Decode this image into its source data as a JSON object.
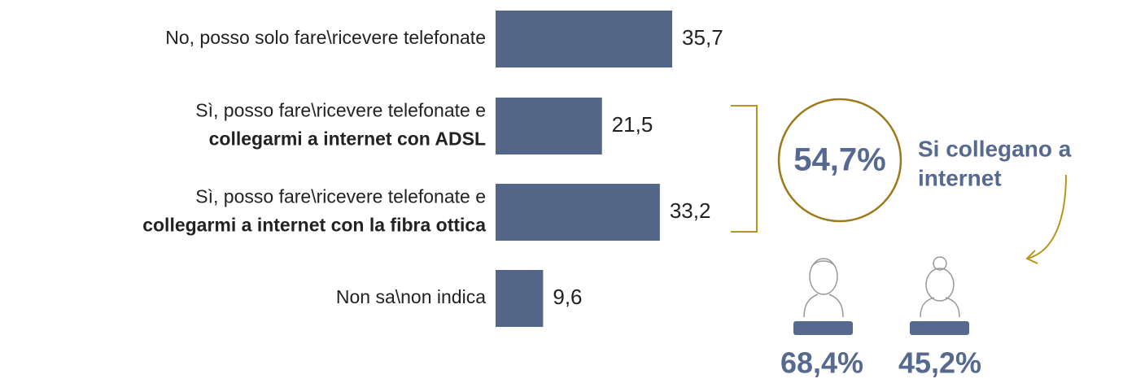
{
  "chart_data": {
    "type": "bar",
    "orientation": "horizontal",
    "categories": [
      [
        "No, posso solo fare\\ricevere telefonate"
      ],
      [
        "Sì, posso fare\\ricevere telefonate e",
        "collegarmi a internet con ADSL"
      ],
      [
        "Sì, posso fare\\ricevere telefonate e",
        "collegarmi a internet con la fibra ottica"
      ],
      [
        "Non sa\\non indica"
      ]
    ],
    "bold": [
      [
        false
      ],
      [
        false,
        true
      ],
      [
        false,
        true
      ],
      [
        false
      ]
    ],
    "values": [
      35.7,
      21.5,
      33.2,
      9.6
    ],
    "value_labels": [
      "35,7",
      "21,5",
      "33,2",
      "9,6"
    ],
    "color": "#536687",
    "annotations": {
      "total": "54,7%",
      "total_caption": [
        "Si collegano a",
        "internet"
      ],
      "male": "68,4%",
      "female": "45,2%"
    }
  }
}
